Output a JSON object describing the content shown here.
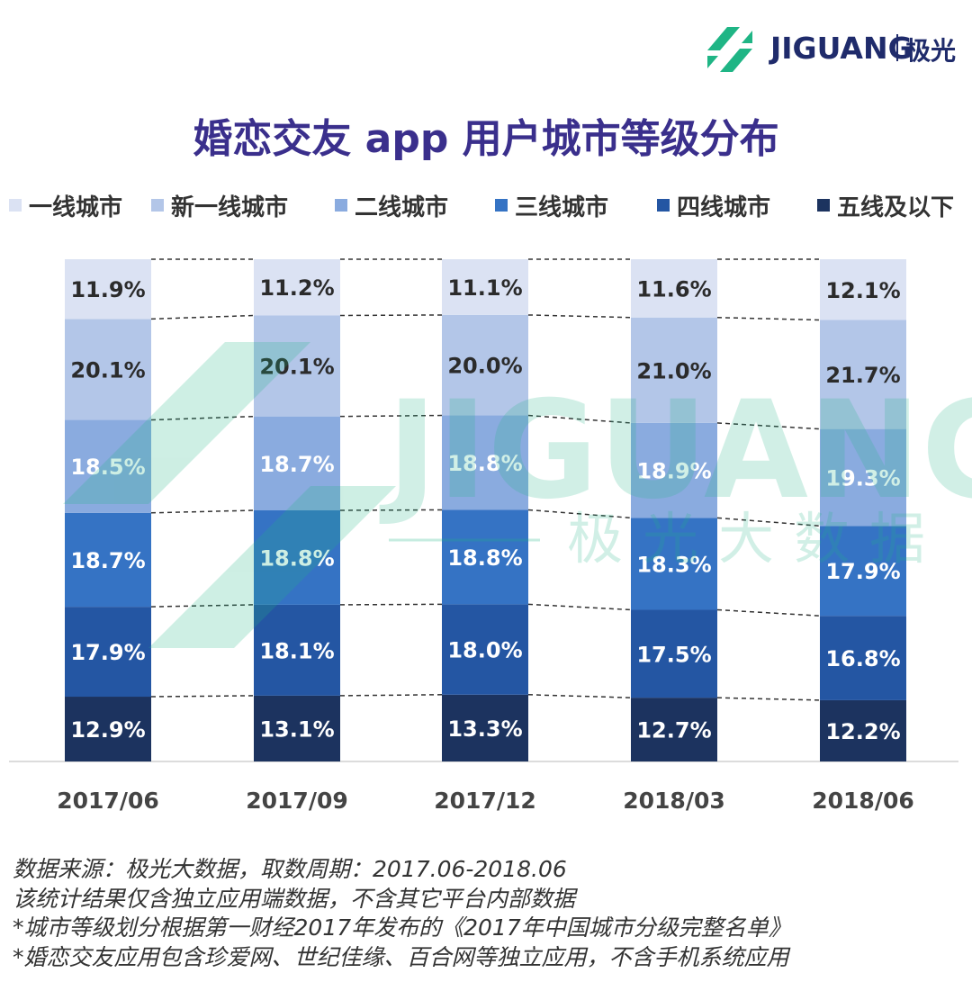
{
  "logo": {
    "brand": "JIGUANG",
    "cn": "极光"
  },
  "watermark": {
    "brand": "JIGUANG",
    "cn": "极光大数据"
  },
  "colors": {
    "tier1": "#dbe2f3",
    "new_tier1": "#b3c6e8",
    "tier2": "#8aabdf",
    "tier3": "#3573c4",
    "tier4": "#2456a3",
    "tier5": "#1c335f",
    "logo_green": "#1fb585"
  },
  "chart_data": {
    "type": "bar",
    "stacked": true,
    "title": "婚恋交友 app 用户城市等级分布",
    "categories": [
      "2017/06",
      "2017/09",
      "2017/12",
      "2018/03",
      "2018/06"
    ],
    "ylim": [
      0,
      100
    ],
    "series": [
      {
        "name": "五线及以下",
        "values": [
          12.9,
          13.1,
          13.3,
          12.7,
          12.2
        ],
        "labels": [
          "12.9%",
          "13.1%",
          "13.3%",
          "12.7%",
          "12.2%"
        ]
      },
      {
        "name": "四线城市",
        "values": [
          17.9,
          18.1,
          18.0,
          17.5,
          16.8
        ],
        "labels": [
          "17.9%",
          "18.1%",
          "18.0%",
          "17.5%",
          "16.8%"
        ]
      },
      {
        "name": "三线城市",
        "values": [
          18.7,
          18.8,
          18.8,
          18.3,
          17.9
        ],
        "labels": [
          "18.7%",
          "18.8%",
          "18.8%",
          "18.3%",
          "17.9%"
        ]
      },
      {
        "name": "二线城市",
        "values": [
          18.5,
          18.7,
          18.8,
          18.9,
          19.3
        ],
        "labels": [
          "18.5%",
          "18.7%",
          "18.8%",
          "18.9%",
          "19.3%"
        ]
      },
      {
        "name": "新一线城市",
        "values": [
          20.1,
          20.1,
          20.0,
          21.0,
          21.7
        ],
        "labels": [
          "20.1%",
          "20.1%",
          "20.0%",
          "21.0%",
          "21.7%"
        ]
      },
      {
        "name": "一线城市",
        "values": [
          11.9,
          11.2,
          11.1,
          11.6,
          12.1
        ],
        "labels": [
          "11.9%",
          "11.2%",
          "11.1%",
          "11.6%",
          "12.1%"
        ]
      }
    ],
    "legend": [
      "一线城市",
      "新一线城市",
      "二线城市",
      "三线城市",
      "四线城市",
      "五线及以下"
    ]
  },
  "notes": [
    "数据来源：极光大数据，取数周期：2017.06-2018.06",
    "该统计结果仅含独立应用端数据，不含其它平台内部数据",
    "*城市等级划分根据第一财经2017年发布的《2017年中国城市分级完整名单》",
    "*婚恋交友应用包含珍爱网、世纪佳缘、百合网等独立应用，不含手机系统应用"
  ]
}
